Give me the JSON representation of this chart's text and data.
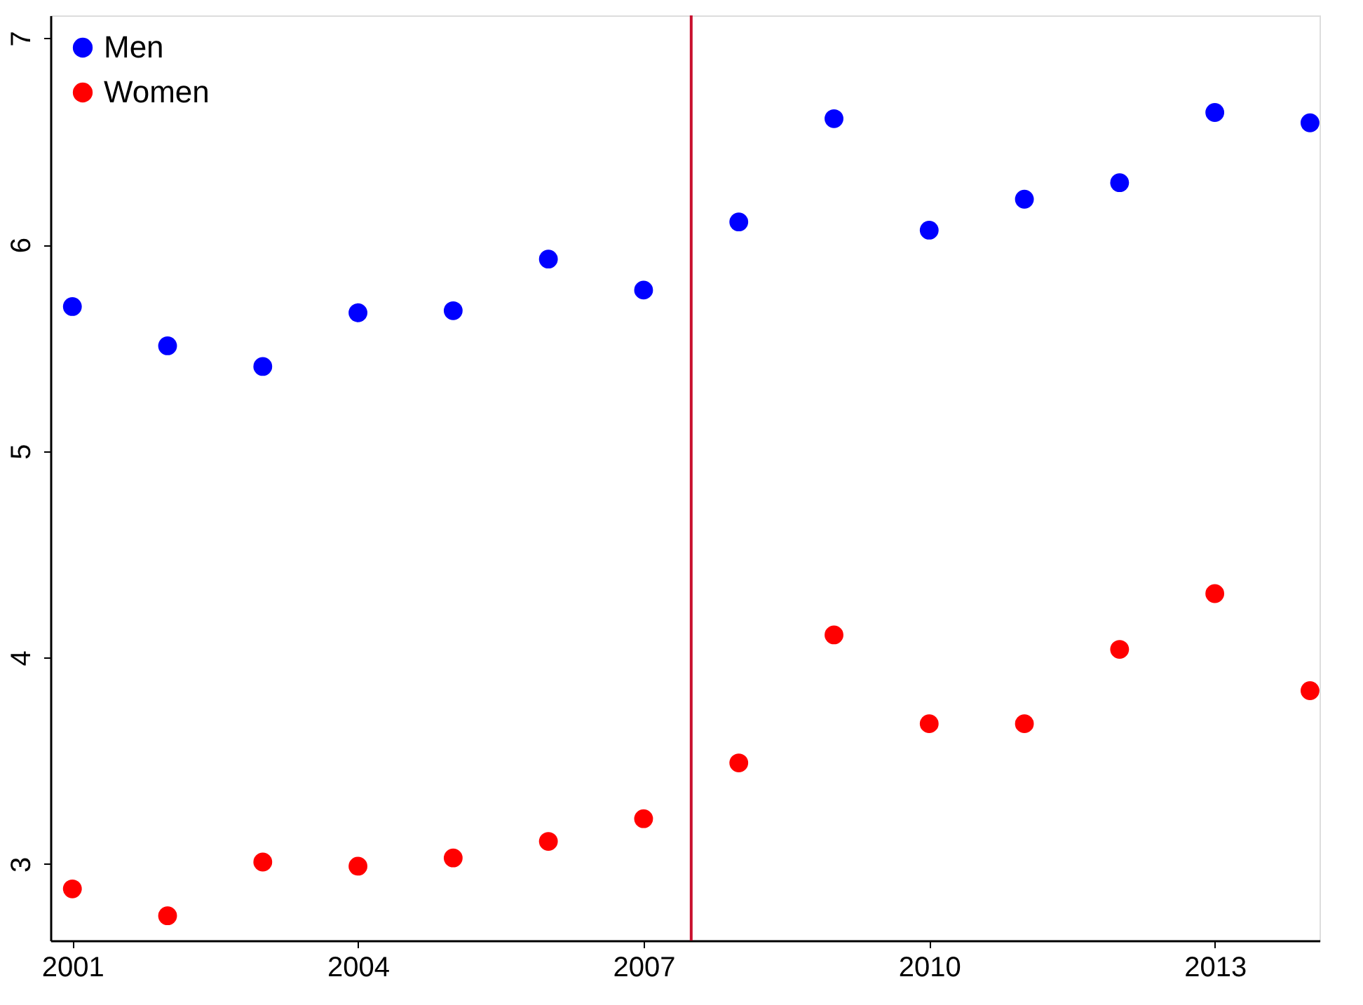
{
  "chart_data": {
    "type": "scatter",
    "x": [
      2001,
      2002,
      2003,
      2004,
      2005,
      2006,
      2007,
      2008,
      2009,
      2010,
      2011,
      2012,
      2013,
      2014
    ],
    "series": [
      {
        "name": "Men",
        "color": "#0000ff",
        "values": [
          5.7,
          5.51,
          5.41,
          5.67,
          5.68,
          5.93,
          5.78,
          6.11,
          6.61,
          6.07,
          6.22,
          6.3,
          6.64,
          6.59
        ]
      },
      {
        "name": "Women",
        "color": "#ff0000",
        "values": [
          2.88,
          2.75,
          3.01,
          2.99,
          3.03,
          3.11,
          3.22,
          3.49,
          4.11,
          3.68,
          3.68,
          4.04,
          4.31,
          3.84
        ]
      }
    ],
    "xlim": [
      2000.77,
      2014.1
    ],
    "xticks": [
      2001,
      2004,
      2007,
      2010,
      2013
    ],
    "ylim": [
      2.63,
      7.11
    ],
    "yticks": [
      3,
      4,
      5,
      6,
      7
    ],
    "ref_lines": [
      {
        "axis": "x",
        "value": 2007.5,
        "color": "#c8102e"
      }
    ],
    "grid": false,
    "legend": "top left",
    "marker": "circle"
  }
}
